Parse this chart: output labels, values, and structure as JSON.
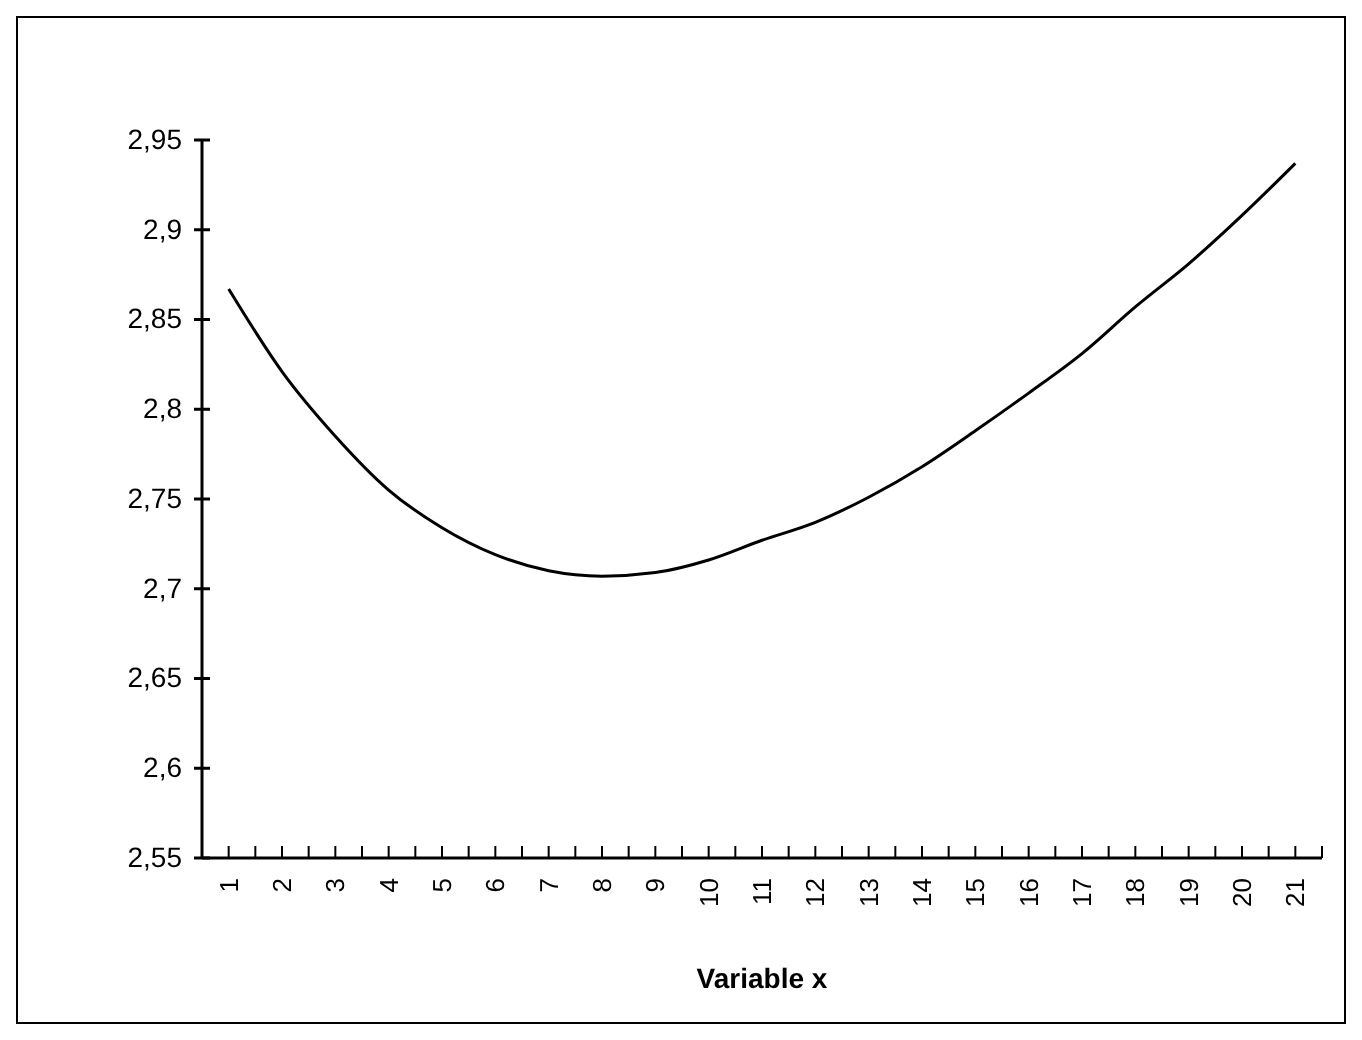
{
  "chart_data": {
    "type": "line",
    "xlabel": "Variable x",
    "categories": [
      "1",
      "2",
      "3",
      "4",
      "5",
      "6",
      "7",
      "8",
      "9",
      "10",
      "11",
      "12",
      "13",
      "14",
      "15",
      "16",
      "17",
      "18",
      "19",
      "20",
      "21"
    ],
    "values": [
      2.867,
      2.821,
      2.785,
      2.755,
      2.734,
      2.719,
      2.71,
      2.707,
      2.709,
      2.716,
      2.727,
      2.737,
      2.751,
      2.768,
      2.788,
      2.809,
      2.831,
      2.857,
      2.881,
      2.908,
      2.937
    ],
    "color": "#000000",
    "ylim": [
      2.55,
      2.95
    ],
    "yticks": [
      {
        "value": 2.55,
        "label": "2,55"
      },
      {
        "value": 2.6,
        "label": "2,6"
      },
      {
        "value": 2.65,
        "label": "2,65"
      },
      {
        "value": 2.7,
        "label": "2,7"
      },
      {
        "value": 2.75,
        "label": "2,75"
      },
      {
        "value": 2.8,
        "label": "2,8"
      },
      {
        "value": 2.85,
        "label": "2,85"
      },
      {
        "value": 2.9,
        "label": "2,9"
      },
      {
        "value": 2.95,
        "label": "2,95"
      }
    ],
    "grid": false,
    "marker": "none",
    "line_style": "solid"
  }
}
